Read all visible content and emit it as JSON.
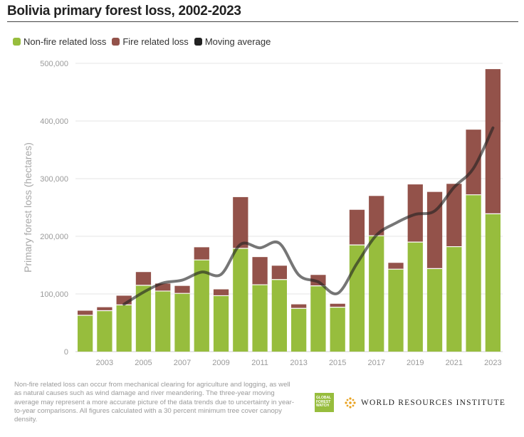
{
  "title": "Bolivia primary forest loss, 2002-2023",
  "legend": [
    {
      "label": "Non-fire related loss",
      "color": "#97bd3d"
    },
    {
      "label": "Fire related loss",
      "color": "#93524a"
    },
    {
      "label": "Moving average",
      "color": "#222222"
    }
  ],
  "chart_data": {
    "type": "bar",
    "stacked": true,
    "x": [
      2002,
      2003,
      2004,
      2005,
      2006,
      2007,
      2008,
      2009,
      2010,
      2011,
      2012,
      2013,
      2014,
      2015,
      2016,
      2017,
      2018,
      2019,
      2020,
      2021,
      2022,
      2023
    ],
    "series": [
      {
        "name": "Non-fire related loss",
        "color": "#97bd3d",
        "values": [
          63000,
          71000,
          81000,
          115000,
          105000,
          101000,
          159000,
          97000,
          179000,
          116000,
          125000,
          75000,
          114000,
          77000,
          185000,
          201000,
          143000,
          190000,
          144000,
          182000,
          272000,
          239000
        ]
      },
      {
        "name": "Fire related loss",
        "color": "#93524a",
        "values": [
          8000,
          6000,
          16000,
          23000,
          13000,
          13000,
          22000,
          11000,
          89000,
          48000,
          24000,
          7000,
          19000,
          6000,
          61000,
          69000,
          11000,
          100000,
          133000,
          109000,
          113000,
          251000
        ]
      },
      {
        "name": "Moving average",
        "type": "line",
        "color": "#222222",
        "values": [
          null,
          null,
          82000,
          103000,
          119000,
          124000,
          138000,
          134000,
          186000,
          180000,
          188000,
          133000,
          121000,
          101000,
          153000,
          202000,
          223000,
          238000,
          244000,
          285000,
          318000,
          388000
        ]
      }
    ],
    "xticks": [
      "2003",
      "2005",
      "2007",
      "2009",
      "2011",
      "2013",
      "2015",
      "2017",
      "2019",
      "2021",
      "2023"
    ],
    "yticks": [
      "0",
      "100,000",
      "200,000",
      "300,000",
      "400,000",
      "500,000"
    ],
    "ylabel": "Primary forest loss (hectares)",
    "ylim": [
      0,
      500000
    ],
    "grid": true
  },
  "footnote": "Non-fire related loss can occur from mechanical clearing for agriculture and logging, as well as natural causes such as wind damage and river meandering. The three-year moving average may represent a more accurate picture of the data trends due to uncertainty in year-to-year comparisons. All figures calculated with a 30 percent minimum tree cover canopy density.",
  "logos": {
    "gfw_lines": [
      "GLOBAL",
      "FOREST",
      "WATCH"
    ],
    "wri": "WORLD RESOURCES INSTITUTE"
  }
}
